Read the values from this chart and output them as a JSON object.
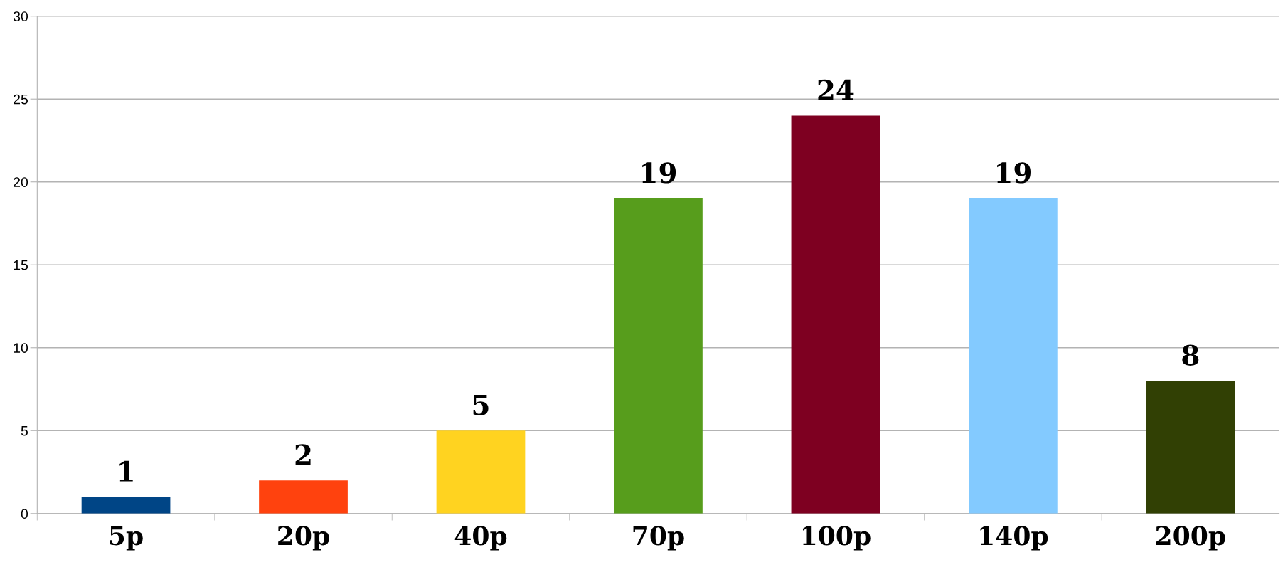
{
  "chart_data": {
    "type": "bar",
    "categories": [
      "5p",
      "20p",
      "40p",
      "70p",
      "100p",
      "140p",
      "200p"
    ],
    "values": [
      1,
      2,
      5,
      19,
      24,
      19,
      8
    ],
    "colors": [
      "#004586",
      "#ff420e",
      "#ffd320",
      "#579d1c",
      "#7e0021",
      "#83caff",
      "#314004"
    ],
    "ylim": [
      0,
      30
    ],
    "yticks": [
      0,
      5,
      10,
      15,
      20,
      25,
      30
    ],
    "grid": "y",
    "data_labels": true
  }
}
